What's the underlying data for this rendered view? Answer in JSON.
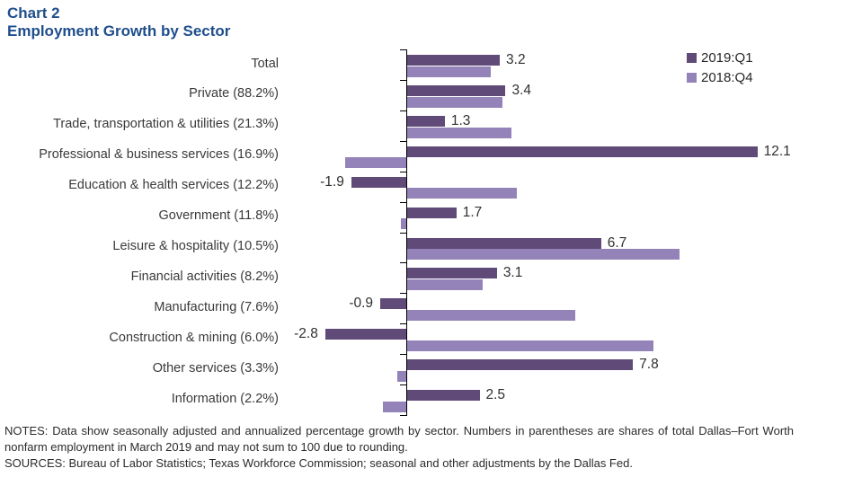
{
  "title": {
    "line1": "Chart 2",
    "line2": "Employment Growth by Sector",
    "color": "#1f4e8c"
  },
  "legend": {
    "position": "top-right",
    "items": [
      {
        "label": "2019:Q1",
        "color": "#604a78"
      },
      {
        "label": "2018:Q4",
        "color": "#9483b9"
      }
    ]
  },
  "chart_data": {
    "type": "bar",
    "orientation": "horizontal",
    "title": "Employment Growth by Sector",
    "xlabel": "",
    "ylabel": "",
    "xlim": [
      -4,
      14
    ],
    "grid": false,
    "legend_position": "top-right",
    "categories": [
      "Total",
      "Private (88.2%)",
      "Trade, transportation & utilities (21.3%)",
      "Professional & business services (16.9%)",
      "Education & health services (12.2%)",
      "Government (11.8%)",
      "Leisure & hospitality (10.5%)",
      "Financial activities (8.2%)",
      "Manufacturing (7.6%)",
      "Construction & mining (6.0%)",
      "Other services (3.3%)",
      "Information (2.2%)"
    ],
    "series": [
      {
        "name": "2019:Q1",
        "color": "#604a78",
        "values": [
          3.2,
          3.4,
          1.3,
          12.1,
          -1.9,
          1.7,
          6.7,
          3.1,
          -0.9,
          -2.8,
          7.8,
          2.5
        ],
        "show_value_labels": true,
        "value_labels": [
          "3.2",
          "3.4",
          "1.3",
          "12.1",
          "-1.9",
          "1.7",
          "6.7",
          "3.1",
          "-0.9",
          "-2.8",
          "7.8",
          "2.5"
        ]
      },
      {
        "name": "2018:Q4",
        "color": "#9483b9",
        "values": [
          2.9,
          3.3,
          3.6,
          -2.1,
          3.8,
          -0.2,
          9.4,
          2.6,
          5.8,
          8.5,
          -0.3,
          -0.8
        ],
        "show_value_labels": false,
        "value_labels": []
      }
    ]
  },
  "notes": {
    "notes_text": "NOTES: Data show seasonally adjusted and annualized percentage growth by sector. Numbers in parentheses are shares of total Dallas–Fort Worth nonfarm employment in March 2019 and may not sum to 100 due to rounding.",
    "sources_text": "SOURCES: Bureau of Labor Statistics; Texas Workforce Commission; seasonal and other adjustments by the Dallas Fed."
  }
}
